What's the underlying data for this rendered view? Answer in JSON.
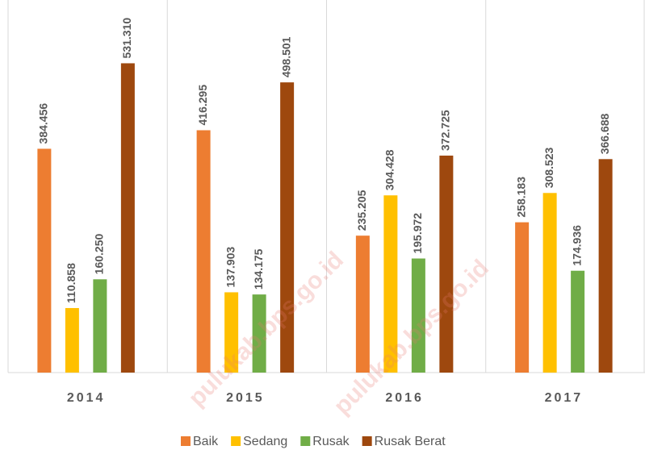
{
  "chart_data": {
    "type": "bar",
    "categories": [
      "2014",
      "2015",
      "2016",
      "2017"
    ],
    "series": [
      {
        "name": "Baik",
        "color": "#ed7d31",
        "values": [
          384.456,
          416.295,
          235.205,
          258.183
        ],
        "value_labels": [
          "384.456",
          "416.295",
          "235.205",
          "258.183"
        ]
      },
      {
        "name": "Sedang",
        "color": "#ffc000",
        "values": [
          110.858,
          137.903,
          304.428,
          308.523
        ],
        "value_labels": [
          "110.858",
          "137.903",
          "304.428",
          "308.523"
        ]
      },
      {
        "name": "Rusak",
        "color": "#70ad47",
        "values": [
          160.25,
          134.175,
          195.972,
          174.936
        ],
        "value_labels": [
          "160.250",
          "134.175",
          "195.972",
          "174.936"
        ]
      },
      {
        "name": "Rusak Berat",
        "color": "#9e480e",
        "values": [
          531.31,
          498.501,
          372.725,
          366.688
        ],
        "value_labels": [
          "531.310",
          "498.501",
          "372.725",
          "366.688"
        ]
      }
    ],
    "ylim": [
      0,
      640
    ],
    "legend": "bottom",
    "watermark": "pulukab.bps.go.id"
  }
}
